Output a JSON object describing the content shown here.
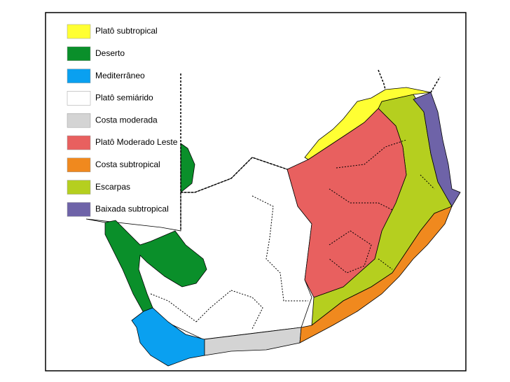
{
  "legend": {
    "items": [
      {
        "label": "Platô subtropical",
        "color": "#ffff33"
      },
      {
        "label": "Deserto",
        "color": "#0a8f2a"
      },
      {
        "label": "Mediterrâneo",
        "color": "#0aa0f0"
      },
      {
        "label": "Platô semiárido",
        "color": "#ffffff"
      },
      {
        "label": "Costa moderada",
        "color": "#d4d4d4"
      },
      {
        "label": "Platô Moderado Leste",
        "color": "#e8605f"
      },
      {
        "label": "Costa subtropical",
        "color": "#f0891e"
      },
      {
        "label": "Escarpas",
        "color": "#b5cf1f"
      },
      {
        "label": "Baixada subtropical",
        "color": "#6e63a8"
      }
    ]
  }
}
